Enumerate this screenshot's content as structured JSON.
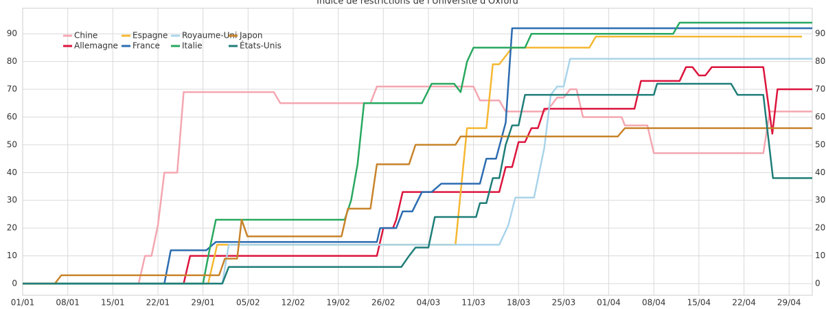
{
  "chart_data": {
    "type": "line",
    "title": "Indice de restrictions de l'Université d'Oxford",
    "xlim": [
      0,
      122.6
    ],
    "ylim": [
      -4.2,
      99.2
    ],
    "xticks": [
      {
        "value": 0,
        "label": "01/01"
      },
      {
        "value": 7,
        "label": "08/01"
      },
      {
        "value": 14,
        "label": "15/01"
      },
      {
        "value": 21,
        "label": "22/01"
      },
      {
        "value": 28,
        "label": "29/01"
      },
      {
        "value": 35,
        "label": "05/02"
      },
      {
        "value": 42,
        "label": "12/02"
      },
      {
        "value": 49,
        "label": "19/02"
      },
      {
        "value": 56,
        "label": "26/02"
      },
      {
        "value": 63,
        "label": "04/03"
      },
      {
        "value": 70,
        "label": "11/03"
      },
      {
        "value": 77,
        "label": "18/03"
      },
      {
        "value": 84,
        "label": "25/03"
      },
      {
        "value": 91,
        "label": "01/04"
      },
      {
        "value": 98,
        "label": "08/04"
      },
      {
        "value": 105,
        "label": "15/04"
      },
      {
        "value": 112,
        "label": "22/04"
      },
      {
        "value": 119,
        "label": "29/04"
      }
    ],
    "yticks": [
      0,
      10,
      20,
      30,
      40,
      50,
      60,
      70,
      80,
      90
    ],
    "grid": true,
    "legend": "top-left",
    "series": [
      {
        "name": "Chine",
        "color": "#f4a6b0",
        "x": [
          0,
          18,
          19,
          20,
          21,
          22,
          24,
          25,
          39,
          40,
          54,
          55,
          70,
          71,
          74,
          75,
          81,
          82,
          83,
          84,
          85,
          86,
          87,
          93,
          93.5,
          97,
          98,
          115,
          116,
          122.6
        ],
        "values": [
          0,
          0,
          10,
          10,
          21,
          40,
          40,
          69,
          69,
          65,
          65,
          71,
          71,
          66,
          66,
          62,
          62,
          64,
          67,
          67,
          70,
          70,
          60,
          60,
          57,
          57,
          47,
          47,
          62,
          62
        ]
      },
      {
        "name": "Allemagne",
        "color": "#dc143c",
        "x": [
          0,
          25,
          26,
          55,
          56,
          57.5,
          58,
          59,
          74,
          75,
          76,
          77,
          78,
          79,
          80,
          81,
          95,
          96,
          102,
          103,
          104,
          105,
          106,
          107,
          115,
          116.4,
          117.2,
          122.6
        ],
        "values": [
          0,
          0,
          10,
          10,
          20,
          20,
          23,
          33,
          33,
          42,
          42,
          51,
          51,
          56,
          56,
          63,
          63,
          73,
          73,
          78,
          78,
          75,
          75,
          78,
          78,
          54,
          70,
          70
        ]
      },
      {
        "name": "Espagne",
        "color": "#f5b731",
        "x": [
          0,
          28.8,
          30.2,
          31.7,
          32,
          67.2,
          69,
          72,
          73,
          74,
          76,
          88,
          89,
          121
        ],
        "values": [
          0,
          0,
          14,
          14,
          14,
          14,
          56,
          56,
          79,
          79,
          85,
          85,
          89,
          89
        ]
      },
      {
        "name": "France",
        "color": "#2b6cb0",
        "x": [
          0,
          22,
          23,
          28.5,
          30,
          55,
          55.5,
          58,
          59,
          60.5,
          62,
          63.5,
          65,
          71,
          72,
          73.5,
          75,
          76,
          122.6
        ],
        "values": [
          0,
          0,
          12,
          12,
          15,
          15,
          20,
          20,
          26,
          26,
          33,
          33,
          36,
          36,
          45,
          45,
          58,
          92,
          92
        ]
      },
      {
        "name": "Royaume-Uni",
        "color": "#a9d4ea",
        "x": [
          0,
          31,
          32,
          74,
          75.4,
          76.5,
          79.4,
          81,
          82,
          83,
          84,
          85,
          122.6
        ],
        "values": [
          0,
          0,
          14,
          14,
          21,
          31,
          31,
          49,
          68,
          71,
          71,
          81,
          81
        ]
      },
      {
        "name": "Italie",
        "color": "#27a85f",
        "x": [
          0,
          28,
          29,
          30,
          50,
          51,
          52,
          53,
          62,
          63.5,
          67,
          68,
          69,
          70,
          78,
          79,
          101,
          102,
          122.6
        ],
        "values": [
          0,
          0,
          12,
          23,
          23,
          30,
          43,
          65,
          65,
          72,
          72,
          69,
          80,
          85,
          85,
          90,
          90,
          94,
          94
        ]
      },
      {
        "name": "Japon",
        "color": "#c8832a",
        "x": [
          0,
          5,
          6,
          30.5,
          31.4,
          33.3,
          34,
          34.9,
          49.5,
          50.5,
          54,
          55,
          60,
          61,
          67.2,
          68,
          92.4,
          93.5,
          122.6
        ],
        "values": [
          0,
          0,
          3,
          3,
          9,
          9,
          23,
          17,
          17,
          27,
          27,
          43,
          43,
          50,
          50,
          53,
          53,
          56,
          56
        ]
      },
      {
        "name": "États-Unis",
        "color": "#1e7d78",
        "x": [
          0,
          31,
          32,
          58.8,
          60,
          61,
          63,
          64,
          70.4,
          71,
          72,
          73,
          74,
          75,
          76,
          77,
          78,
          98,
          98.5,
          110,
          111,
          115,
          116.5,
          122.6
        ],
        "values": [
          0,
          0,
          6,
          6,
          10,
          13,
          13,
          24,
          24,
          29,
          29,
          38,
          38,
          50,
          57,
          57,
          68,
          68,
          72,
          72,
          68,
          68,
          38,
          38
        ]
      }
    ]
  }
}
